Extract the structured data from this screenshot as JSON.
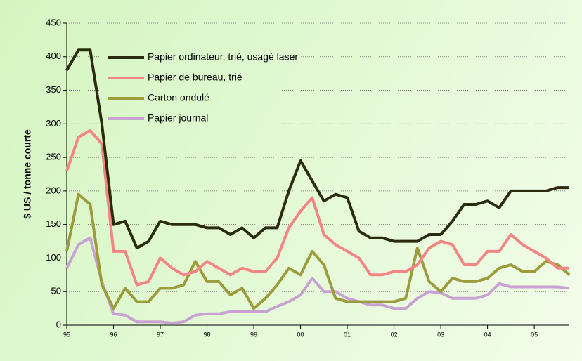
{
  "chart_data": {
    "type": "line",
    "ylabel": "$ US / tonne courte",
    "x": [
      1995,
      1995.25,
      1995.5,
      1995.75,
      1996,
      1996.25,
      1996.5,
      1996.75,
      1997,
      1997.25,
      1997.5,
      1997.75,
      1998,
      1998.25,
      1998.5,
      1998.75,
      1999,
      1999.25,
      1999.5,
      1999.75,
      2000,
      2000.25,
      2000.5,
      2000.75,
      2001,
      2001.25,
      2001.5,
      2001.75,
      2002,
      2002.25,
      2002.5,
      2002.75,
      2003,
      2003.25,
      2003.5,
      2003.75,
      2004,
      2004.25,
      2004.5,
      2004.75,
      2005,
      2005.25,
      2005.5,
      2005.75
    ],
    "series": [
      {
        "name": "Papier ordinateur, trié, usagé laser",
        "color": "#2b2b0e",
        "values": [
          380,
          410,
          410,
          300,
          150,
          155,
          115,
          125,
          155,
          150,
          150,
          150,
          145,
          145,
          135,
          145,
          130,
          145,
          145,
          200,
          245,
          215,
          185,
          195,
          190,
          140,
          130,
          130,
          125,
          125,
          125,
          135,
          135,
          155,
          180,
          180,
          185,
          175,
          200,
          200,
          200,
          200,
          205,
          205
        ]
      },
      {
        "name": "Papier de bureau, trié",
        "color": "#f58585",
        "values": [
          230,
          280,
          290,
          270,
          110,
          110,
          60,
          65,
          100,
          85,
          75,
          80,
          95,
          85,
          75,
          85,
          80,
          80,
          100,
          145,
          170,
          190,
          135,
          120,
          110,
          100,
          75,
          75,
          80,
          80,
          90,
          115,
          125,
          120,
          90,
          90,
          110,
          110,
          135,
          120,
          110,
          100,
          85,
          85
        ]
      },
      {
        "name": "Carton ondulé",
        "color": "#9c9c3c",
        "values": [
          110,
          195,
          180,
          60,
          25,
          55,
          35,
          35,
          55,
          55,
          60,
          95,
          65,
          65,
          45,
          55,
          25,
          40,
          60,
          85,
          75,
          110,
          90,
          40,
          35,
          35,
          35,
          35,
          35,
          40,
          115,
          65,
          50,
          70,
          65,
          65,
          70,
          85,
          90,
          80,
          80,
          95,
          90,
          75
        ]
      },
      {
        "name": "Papier journal",
        "color": "#c9a2d4",
        "values": [
          85,
          120,
          130,
          65,
          17,
          15,
          5,
          5,
          5,
          3,
          5,
          15,
          17,
          17,
          20,
          20,
          20,
          20,
          28,
          35,
          45,
          70,
          50,
          50,
          40,
          35,
          30,
          30,
          25,
          25,
          40,
          50,
          48,
          40,
          40,
          40,
          45,
          62,
          57,
          57,
          57,
          57,
          57,
          55
        ]
      }
    ],
    "xlim": [
      1995,
      2005.75
    ],
    "xticks": [
      {
        "value": 1995,
        "label": "95"
      },
      {
        "value": 1996,
        "label": "96"
      },
      {
        "value": 1997,
        "label": "97"
      },
      {
        "value": 1998,
        "label": "98"
      },
      {
        "value": 1999,
        "label": "99"
      },
      {
        "value": 2000,
        "label": "00"
      },
      {
        "value": 2001,
        "label": "01"
      },
      {
        "value": 2002,
        "label": "02"
      },
      {
        "value": 2003,
        "label": "03"
      },
      {
        "value": 2004,
        "label": "04"
      },
      {
        "value": 2005,
        "label": "05"
      }
    ],
    "ylim": [
      0,
      450
    ],
    "yticks": [
      0,
      50,
      100,
      150,
      200,
      250,
      300,
      350,
      400,
      450
    ],
    "grid": true,
    "legend": "upper left"
  }
}
